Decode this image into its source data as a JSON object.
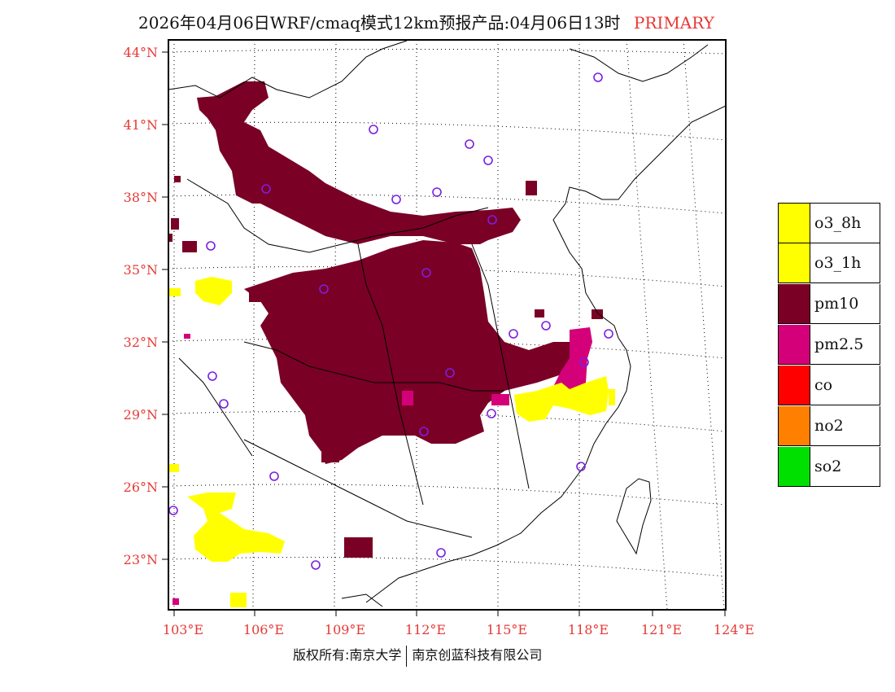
{
  "title": {
    "main": "2026年04月06日WRF/cmaq模式12km预报产品:04月06日13时",
    "tag": "PRIMARY"
  },
  "colors": {
    "label_red": "#e53935",
    "pm10": "#7a0026",
    "pm25": "#d4007a",
    "o3": "#ffff00"
  },
  "lat_labels": [
    "44°N",
    "41°N",
    "38°N",
    "35°N",
    "32°N",
    "29°N",
    "26°N",
    "23°N"
  ],
  "lon_labels": [
    "103°E",
    "106°E",
    "109°E",
    "112°E",
    "115°E",
    "118°E",
    "121°E",
    "124°E"
  ],
  "legend": {
    "items": [
      {
        "label": "o3_8h",
        "color": "#ffff00"
      },
      {
        "label": "o3_1h",
        "color": "#ffff00"
      },
      {
        "label": "pm10",
        "color": "#7a0026"
      },
      {
        "label": "pm2.5",
        "color": "#d4007a"
      },
      {
        "label": "co",
        "color": "#ff0000"
      },
      {
        "label": "no2",
        "color": "#ff8000"
      },
      {
        "label": "so2",
        "color": "#00e000"
      }
    ]
  },
  "footer": {
    "left": "版权所有:南京大学",
    "right": "南京创蓝科技有限公司"
  }
}
